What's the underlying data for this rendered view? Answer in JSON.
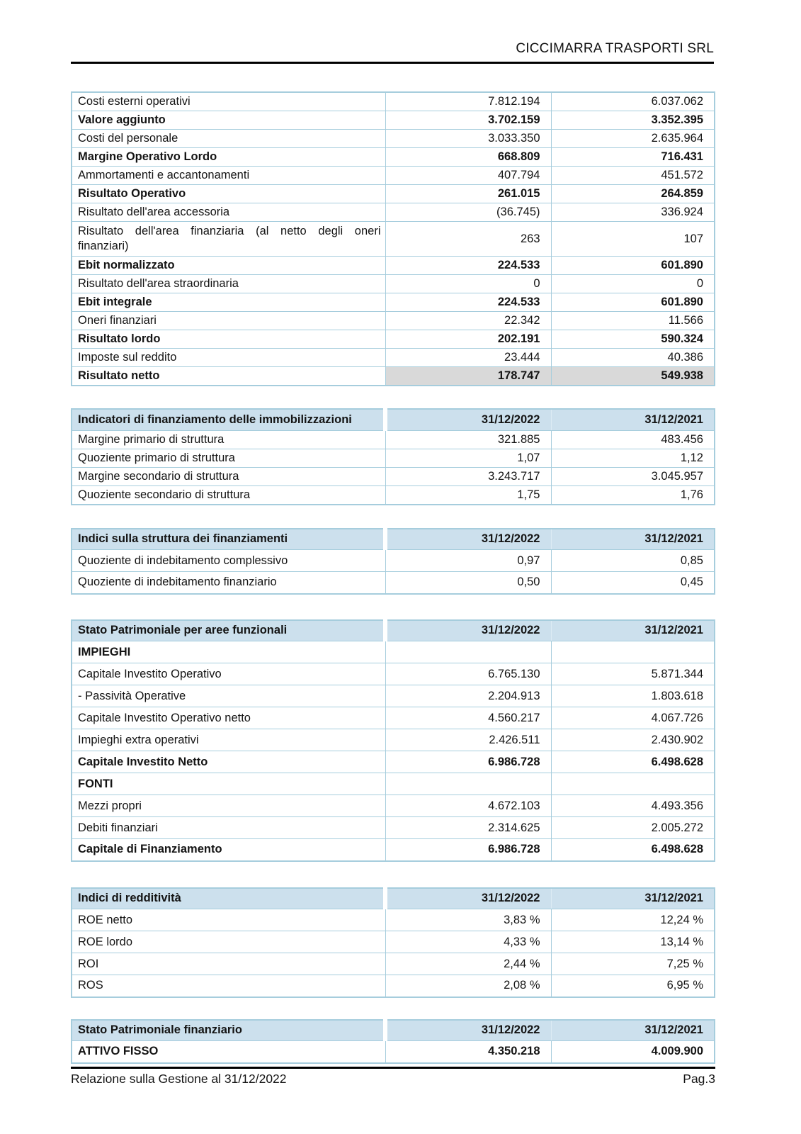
{
  "page": {
    "header_title": "CICCIMARRA TRASPORTI SRL",
    "footer_left": "Relazione sulla Gestione al 31/12/2022",
    "footer_right": "Pag.3"
  },
  "colors": {
    "table_header_bg": "#cce0ed",
    "table_border": "#a6cddd",
    "highlight_gray": "#d9d9d9",
    "rule_black": "#000000"
  },
  "income_statement": {
    "rows": [
      {
        "label": "Costi esterni operativi",
        "v2022": "7.812.194",
        "v2021": "6.037.062"
      },
      {
        "label": "Valore aggiunto",
        "v2022": "3.702.159",
        "v2021": "3.352.395"
      },
      {
        "label": "Costi del personale",
        "v2022": "3.033.350",
        "v2021": "2.635.964"
      },
      {
        "label": "Margine Operativo Lordo",
        "v2022": "668.809",
        "v2021": "716.431"
      },
      {
        "label": "Ammortamenti e accantonamenti",
        "v2022": "407.794",
        "v2021": "451.572"
      },
      {
        "label": "Risultato Operativo",
        "v2022": "261.015",
        "v2021": "264.859"
      },
      {
        "label": "Risultato dell'area accessoria",
        "v2022": "(36.745)",
        "v2021": "336.924"
      },
      {
        "label": "Risultato dell'area finanziaria (al netto degli oneri finanziari)",
        "v2022": "263",
        "v2021": "107"
      },
      {
        "label": "Ebit normalizzato",
        "v2022": "224.533",
        "v2021": "601.890"
      },
      {
        "label": "Risultato dell'area straordinaria",
        "v2022": "0",
        "v2021": "0"
      },
      {
        "label": "Ebit integrale",
        "v2022": "224.533",
        "v2021": "601.890"
      },
      {
        "label": "Oneri finanziari",
        "v2022": "22.342",
        "v2021": "11.566"
      },
      {
        "label": "Risultato lordo",
        "v2022": "202.191",
        "v2021": "590.324"
      },
      {
        "label": "Imposte sul reddito",
        "v2022": "23.444",
        "v2021": "40.386"
      },
      {
        "label": "Risultato netto",
        "v2022": "178.747",
        "v2021": "549.938"
      }
    ]
  },
  "funding_indicators": {
    "title": "Indicatori di finanziamento delle immobilizzazioni",
    "col_2022": "31/12/2022",
    "col_2021": "31/12/2021",
    "rows": [
      {
        "label": "Margine primario di struttura",
        "v2022": "321.885",
        "v2021": "483.456"
      },
      {
        "label": "Quoziente primario di struttura",
        "v2022": "1,07",
        "v2021": "1,12"
      },
      {
        "label": "Margine secondario di struttura",
        "v2022": "3.243.717",
        "v2021": "3.045.957"
      },
      {
        "label": "Quoziente secondario di struttura",
        "v2022": "1,75",
        "v2021": "1,76"
      }
    ]
  },
  "financing_structure_indices": {
    "title": "Indici sulla struttura dei finanziamenti",
    "col_2022": "31/12/2022",
    "col_2021": "31/12/2021",
    "rows": [
      {
        "label": "Quoziente di indebitamento complessivo",
        "v2022": "0,97",
        "v2021": "0,85"
      },
      {
        "label": "Quoziente di indebitamento finanziario",
        "v2022": "0,50",
        "v2021": "0,45"
      }
    ]
  },
  "functional_balance_sheet": {
    "title": "Stato Patrimoniale per aree funzionali",
    "col_2022": "31/12/2022",
    "col_2021": "31/12/2021",
    "rows": [
      {
        "label": "IMPIEGHI",
        "v2022": "",
        "v2021": ""
      },
      {
        "label": "Capitale Investito Operativo",
        "v2022": "6.765.130",
        "v2021": "5.871.344"
      },
      {
        "label": "- Passività Operative",
        "v2022": "2.204.913",
        "v2021": "1.803.618"
      },
      {
        "label": "Capitale Investito Operativo netto",
        "v2022": "4.560.217",
        "v2021": "4.067.726"
      },
      {
        "label": "Impieghi extra operativi",
        "v2022": "2.426.511",
        "v2021": "2.430.902"
      },
      {
        "label": "Capitale Investito Netto",
        "v2022": "6.986.728",
        "v2021": "6.498.628"
      },
      {
        "label": "FONTI",
        "v2022": "",
        "v2021": ""
      },
      {
        "label": "Mezzi propri",
        "v2022": "4.672.103",
        "v2021": "4.493.356"
      },
      {
        "label": "Debiti finanziari",
        "v2022": "2.314.625",
        "v2021": "2.005.272"
      },
      {
        "label": "Capitale di Finanziamento",
        "v2022": "6.986.728",
        "v2021": "6.498.628"
      }
    ]
  },
  "profitability_indices": {
    "title": "Indici di redditività",
    "col_2022": "31/12/2022",
    "col_2021": "31/12/2021",
    "rows": [
      {
        "label": "ROE netto",
        "v2022": "3,83 %",
        "v2021": "12,24 %"
      },
      {
        "label": "ROE lordo",
        "v2022": "4,33 %",
        "v2021": "13,14 %"
      },
      {
        "label": "ROI",
        "v2022": "2,44 %",
        "v2021": "7,25 %"
      },
      {
        "label": "ROS",
        "v2022": "2,08 %",
        "v2021": "6,95 %"
      }
    ]
  },
  "financial_balance_sheet": {
    "title": "Stato Patrimoniale finanziario",
    "col_2022": "31/12/2022",
    "col_2021": "31/12/2021",
    "rows": [
      {
        "label": "ATTIVO FISSO",
        "v2022": "4.350.218",
        "v2021": "4.009.900"
      }
    ]
  }
}
